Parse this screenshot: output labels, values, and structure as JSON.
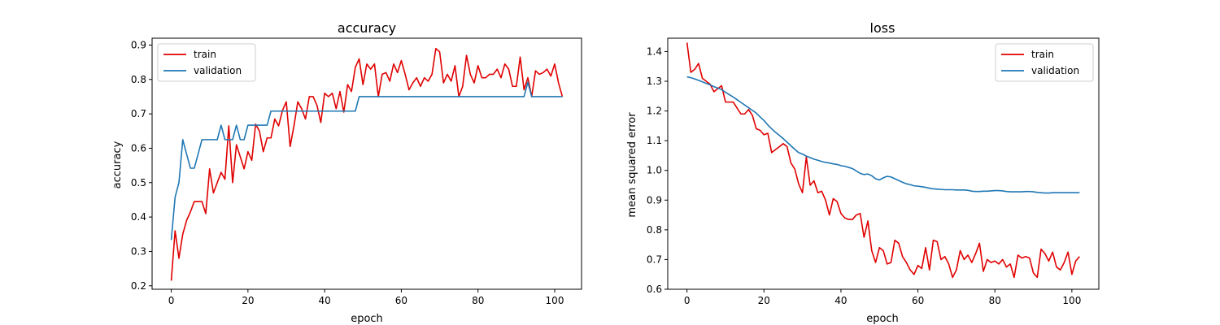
{
  "chart_data": [
    {
      "type": "line",
      "title": "accuracy",
      "xlabel": "epoch",
      "ylabel": "accuracy",
      "xlim": [
        -5,
        107
      ],
      "ylim": [
        0.19,
        0.92
      ],
      "xticks": [
        0,
        20,
        40,
        60,
        80,
        100
      ],
      "yticks": [
        0.2,
        0.3,
        0.4,
        0.5,
        0.6,
        0.7,
        0.8,
        0.9
      ],
      "ytick_labels": [
        "0.2",
        "0.3",
        "0.4",
        "0.5",
        "0.6",
        "0.7",
        "0.8",
        "0.9"
      ],
      "grid": false,
      "legend_position": "top-left",
      "series": [
        {
          "name": "train",
          "color": "#e00000",
          "x": [
            0,
            1,
            2,
            3,
            4,
            5,
            6,
            7,
            8,
            9,
            10,
            11,
            12,
            13,
            14,
            15,
            16,
            17,
            18,
            19,
            20,
            21,
            22,
            23,
            24,
            25,
            26,
            27,
            28,
            29,
            30,
            31,
            32,
            33,
            34,
            35,
            36,
            37,
            38,
            39,
            40,
            41,
            42,
            43,
            44,
            45,
            46,
            47,
            48,
            49,
            50,
            51,
            52,
            53,
            54,
            55,
            56,
            57,
            58,
            59,
            60,
            61,
            62,
            63,
            64,
            65,
            66,
            67,
            68,
            69,
            70,
            71,
            72,
            73,
            74,
            75,
            76,
            77,
            78,
            79,
            80,
            81,
            82,
            83,
            84,
            85,
            86,
            87,
            88,
            89,
            90,
            91,
            92,
            93,
            94,
            95,
            96,
            97,
            98,
            99,
            100,
            101,
            102
          ],
          "values": [
            0.215,
            0.36,
            0.28,
            0.35,
            0.39,
            0.415,
            0.445,
            0.445,
            0.445,
            0.41,
            0.54,
            0.47,
            0.5,
            0.53,
            0.51,
            0.665,
            0.5,
            0.61,
            0.575,
            0.54,
            0.59,
            0.565,
            0.67,
            0.65,
            0.59,
            0.63,
            0.63,
            0.685,
            0.665,
            0.71,
            0.735,
            0.605,
            0.665,
            0.735,
            0.715,
            0.685,
            0.75,
            0.75,
            0.725,
            0.675,
            0.76,
            0.75,
            0.76,
            0.715,
            0.765,
            0.705,
            0.785,
            0.765,
            0.835,
            0.86,
            0.785,
            0.845,
            0.83,
            0.845,
            0.75,
            0.815,
            0.82,
            0.795,
            0.845,
            0.82,
            0.855,
            0.815,
            0.77,
            0.79,
            0.805,
            0.78,
            0.805,
            0.795,
            0.815,
            0.89,
            0.88,
            0.79,
            0.815,
            0.795,
            0.84,
            0.75,
            0.78,
            0.87,
            0.815,
            0.79,
            0.84,
            0.805,
            0.805,
            0.815,
            0.815,
            0.83,
            0.805,
            0.845,
            0.83,
            0.78,
            0.78,
            0.865,
            0.77,
            0.805,
            0.75,
            0.825,
            0.815,
            0.82,
            0.83,
            0.81,
            0.845,
            0.79,
            0.75
          ]
        },
        {
          "name": "validation",
          "color": "#1f77b4",
          "x": [
            0,
            1,
            2,
            3,
            4,
            5,
            6,
            7,
            8,
            9,
            10,
            11,
            12,
            13,
            14,
            15,
            16,
            17,
            18,
            19,
            20,
            21,
            22,
            23,
            24,
            25,
            26,
            27,
            28,
            29,
            30,
            31,
            32,
            33,
            34,
            35,
            36,
            37,
            38,
            39,
            40,
            41,
            42,
            43,
            44,
            45,
            46,
            47,
            48,
            49,
            50,
            51,
            52,
            53,
            54,
            55,
            56,
            57,
            58,
            59,
            60,
            61,
            62,
            63,
            64,
            65,
            66,
            67,
            68,
            69,
            70,
            71,
            72,
            73,
            74,
            75,
            76,
            77,
            78,
            79,
            80,
            81,
            82,
            83,
            84,
            85,
            86,
            87,
            88,
            89,
            90,
            91,
            92,
            93,
            94,
            95,
            96,
            97,
            98,
            99,
            100,
            101,
            102
          ],
          "values": [
            0.333,
            0.458,
            0.5,
            0.625,
            0.583,
            0.542,
            0.542,
            0.583,
            0.625,
            0.625,
            0.625,
            0.625,
            0.625,
            0.667,
            0.625,
            0.625,
            0.625,
            0.667,
            0.625,
            0.625,
            0.667,
            0.667,
            0.667,
            0.667,
            0.667,
            0.667,
            0.708,
            0.708,
            0.708,
            0.708,
            0.708,
            0.708,
            0.708,
            0.708,
            0.708,
            0.708,
            0.708,
            0.708,
            0.708,
            0.708,
            0.708,
            0.708,
            0.708,
            0.708,
            0.708,
            0.708,
            0.708,
            0.708,
            0.708,
            0.75,
            0.75,
            0.75,
            0.75,
            0.75,
            0.75,
            0.75,
            0.75,
            0.75,
            0.75,
            0.75,
            0.75,
            0.75,
            0.75,
            0.75,
            0.75,
            0.75,
            0.75,
            0.75,
            0.75,
            0.75,
            0.75,
            0.75,
            0.75,
            0.75,
            0.75,
            0.75,
            0.75,
            0.75,
            0.75,
            0.75,
            0.75,
            0.75,
            0.75,
            0.75,
            0.75,
            0.75,
            0.75,
            0.75,
            0.75,
            0.75,
            0.75,
            0.75,
            0.75,
            0.792,
            0.75,
            0.75,
            0.75,
            0.75,
            0.75,
            0.75,
            0.75,
            0.75,
            0.75
          ]
        }
      ]
    },
    {
      "type": "line",
      "title": "loss",
      "xlabel": "epoch",
      "ylabel": "mean squared error",
      "xlim": [
        -5,
        107
      ],
      "ylim": [
        0.6,
        1.445
      ],
      "xticks": [
        0,
        20,
        40,
        60,
        80,
        100
      ],
      "yticks": [
        0.6,
        0.7,
        0.8,
        0.9,
        1.0,
        1.1,
        1.2,
        1.3,
        1.4
      ],
      "ytick_labels": [
        "0.6",
        "0.7",
        "0.8",
        "0.9",
        "1.0",
        "1.1",
        "1.2",
        "1.3",
        "1.4"
      ],
      "grid": false,
      "legend_position": "top-right",
      "series": [
        {
          "name": "train",
          "color": "#e00000",
          "x": [
            0,
            1,
            2,
            3,
            4,
            5,
            6,
            7,
            8,
            9,
            10,
            11,
            12,
            13,
            14,
            15,
            16,
            17,
            18,
            19,
            20,
            21,
            22,
            23,
            24,
            25,
            26,
            27,
            28,
            29,
            30,
            31,
            32,
            33,
            34,
            35,
            36,
            37,
            38,
            39,
            40,
            41,
            42,
            43,
            44,
            45,
            46,
            47,
            48,
            49,
            50,
            51,
            52,
            53,
            54,
            55,
            56,
            57,
            58,
            59,
            60,
            61,
            62,
            63,
            64,
            65,
            66,
            67,
            68,
            69,
            70,
            71,
            72,
            73,
            74,
            75,
            76,
            77,
            78,
            79,
            80,
            81,
            82,
            83,
            84,
            85,
            86,
            87,
            88,
            89,
            90,
            91,
            92,
            93,
            94,
            95,
            96,
            97,
            98,
            99,
            100,
            101,
            102
          ],
          "values": [
            1.43,
            1.33,
            1.34,
            1.36,
            1.31,
            1.3,
            1.29,
            1.265,
            1.275,
            1.285,
            1.23,
            1.23,
            1.23,
            1.21,
            1.19,
            1.19,
            1.205,
            1.185,
            1.14,
            1.135,
            1.12,
            1.125,
            1.06,
            1.07,
            1.08,
            1.09,
            1.08,
            1.025,
            1.005,
            0.955,
            0.925,
            1.045,
            0.95,
            0.965,
            0.925,
            0.93,
            0.9,
            0.85,
            0.905,
            0.895,
            0.855,
            0.84,
            0.835,
            0.835,
            0.85,
            0.855,
            0.775,
            0.83,
            0.73,
            0.69,
            0.74,
            0.73,
            0.685,
            0.69,
            0.765,
            0.755,
            0.71,
            0.69,
            0.665,
            0.65,
            0.68,
            0.67,
            0.74,
            0.665,
            0.765,
            0.76,
            0.7,
            0.71,
            0.685,
            0.64,
            0.665,
            0.73,
            0.7,
            0.715,
            0.69,
            0.72,
            0.755,
            0.66,
            0.7,
            0.69,
            0.695,
            0.685,
            0.7,
            0.675,
            0.685,
            0.64,
            0.715,
            0.705,
            0.71,
            0.705,
            0.655,
            0.64,
            0.735,
            0.72,
            0.695,
            0.725,
            0.675,
            0.665,
            0.69,
            0.725,
            0.65,
            0.695,
            0.71
          ]
        },
        {
          "name": "validation",
          "color": "#1f77b4",
          "x": [
            0,
            1,
            2,
            3,
            4,
            5,
            6,
            7,
            8,
            9,
            10,
            11,
            12,
            13,
            14,
            15,
            16,
            17,
            18,
            19,
            20,
            21,
            22,
            23,
            24,
            25,
            26,
            27,
            28,
            29,
            30,
            31,
            32,
            33,
            34,
            35,
            36,
            37,
            38,
            39,
            40,
            41,
            42,
            43,
            44,
            45,
            46,
            47,
            48,
            49,
            50,
            51,
            52,
            53,
            54,
            55,
            56,
            57,
            58,
            59,
            60,
            61,
            62,
            63,
            64,
            65,
            66,
            67,
            68,
            69,
            70,
            71,
            72,
            73,
            74,
            75,
            76,
            77,
            78,
            79,
            80,
            81,
            82,
            83,
            84,
            85,
            86,
            87,
            88,
            89,
            90,
            91,
            92,
            93,
            94,
            95,
            96,
            97,
            98,
            99,
            100,
            101,
            102
          ],
          "values": [
            1.315,
            1.312,
            1.308,
            1.303,
            1.298,
            1.293,
            1.288,
            1.282,
            1.277,
            1.272,
            1.263,
            1.255,
            1.247,
            1.238,
            1.229,
            1.22,
            1.211,
            1.202,
            1.193,
            1.18,
            1.168,
            1.153,
            1.14,
            1.128,
            1.118,
            1.107,
            1.095,
            1.083,
            1.071,
            1.06,
            1.055,
            1.048,
            1.043,
            1.038,
            1.034,
            1.03,
            1.027,
            1.025,
            1.022,
            1.02,
            1.016,
            1.014,
            1.01,
            1.006,
            0.998,
            0.99,
            0.986,
            0.988,
            0.982,
            0.972,
            0.968,
            0.975,
            0.98,
            0.978,
            0.972,
            0.966,
            0.96,
            0.955,
            0.952,
            0.948,
            0.947,
            0.945,
            0.943,
            0.94,
            0.938,
            0.937,
            0.936,
            0.935,
            0.935,
            0.935,
            0.934,
            0.934,
            0.934,
            0.933,
            0.93,
            0.929,
            0.929,
            0.93,
            0.93,
            0.931,
            0.932,
            0.932,
            0.931,
            0.929,
            0.928,
            0.928,
            0.928,
            0.928,
            0.929,
            0.929,
            0.928,
            0.926,
            0.925,
            0.924,
            0.924,
            0.925,
            0.925,
            0.925,
            0.925,
            0.925,
            0.925,
            0.925,
            0.925
          ]
        }
      ]
    }
  ]
}
